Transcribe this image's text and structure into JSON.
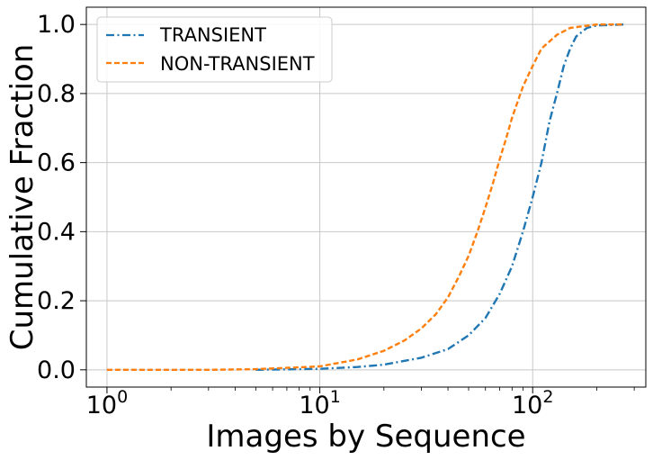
{
  "chart_data": {
    "type": "line",
    "title": "",
    "xlabel": "Images by Sequence",
    "ylabel": "Cumulative Fraction",
    "x_scale": "log",
    "xlim": [
      0.8,
      340
    ],
    "ylim": [
      -0.05,
      1.05
    ],
    "grid": true,
    "legend_position": "top-left",
    "x_ticks": [
      {
        "value": 1,
        "base": "10",
        "exp": "0"
      },
      {
        "value": 10,
        "base": "10",
        "exp": "1"
      },
      {
        "value": 100,
        "base": "10",
        "exp": "2"
      }
    ],
    "y_ticks": [
      {
        "value": 0.0,
        "label": "0.0"
      },
      {
        "value": 0.2,
        "label": "0.2"
      },
      {
        "value": 0.4,
        "label": "0.4"
      },
      {
        "value": 0.6,
        "label": "0.6"
      },
      {
        "value": 0.8,
        "label": "0.8"
      },
      {
        "value": 1.0,
        "label": "1.0"
      }
    ],
    "series": [
      {
        "name": "TRANSIENT",
        "color": "#1f77b4",
        "style": "dashdot",
        "points": [
          [
            5,
            0.0
          ],
          [
            10,
            0.003
          ],
          [
            15,
            0.008
          ],
          [
            20,
            0.015
          ],
          [
            30,
            0.035
          ],
          [
            40,
            0.06
          ],
          [
            50,
            0.1
          ],
          [
            60,
            0.15
          ],
          [
            70,
            0.22
          ],
          [
            80,
            0.3
          ],
          [
            90,
            0.4
          ],
          [
            100,
            0.5
          ],
          [
            110,
            0.6
          ],
          [
            120,
            0.72
          ],
          [
            130,
            0.8
          ],
          [
            140,
            0.88
          ],
          [
            150,
            0.93
          ],
          [
            160,
            0.965
          ],
          [
            180,
            0.99
          ],
          [
            200,
            0.997
          ],
          [
            270,
            1.0
          ]
        ]
      },
      {
        "name": "NON-TRANSIENT",
        "color": "#ff7f0e",
        "style": "dashed",
        "points": [
          [
            1,
            0.0
          ],
          [
            3,
            0.0
          ],
          [
            5,
            0.002
          ],
          [
            10,
            0.01
          ],
          [
            15,
            0.03
          ],
          [
            20,
            0.055
          ],
          [
            25,
            0.085
          ],
          [
            30,
            0.12
          ],
          [
            35,
            0.16
          ],
          [
            40,
            0.21
          ],
          [
            45,
            0.27
          ],
          [
            50,
            0.33
          ],
          [
            55,
            0.4
          ],
          [
            60,
            0.47
          ],
          [
            65,
            0.54
          ],
          [
            70,
            0.61
          ],
          [
            75,
            0.67
          ],
          [
            80,
            0.73
          ],
          [
            90,
            0.82
          ],
          [
            100,
            0.88
          ],
          [
            110,
            0.93
          ],
          [
            130,
            0.97
          ],
          [
            150,
            0.99
          ],
          [
            200,
            1.0
          ],
          [
            270,
            1.0
          ]
        ]
      }
    ]
  }
}
